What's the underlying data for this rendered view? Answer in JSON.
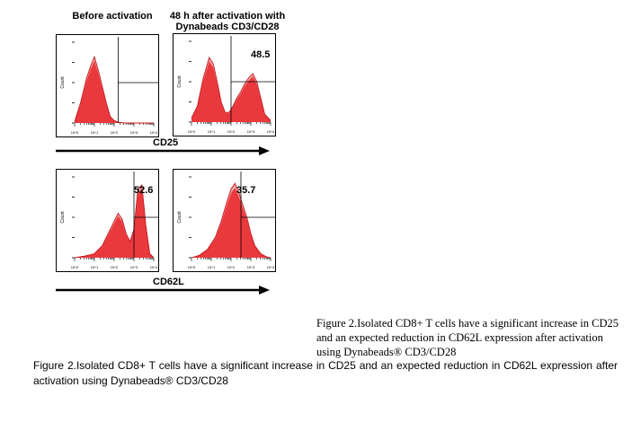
{
  "figure": {
    "column_headers": [
      "Before activation",
      "48 h after activation with\nDynabeads CD3/CD28"
    ],
    "row_markers": [
      "CD25",
      "CD62L"
    ],
    "caption_serif": "Figure 2.Isolated CD8+ T cells have a significant increase in CD25 and an expected reduction in CD62L expression after activation using  Dynabeads® CD3/CD28",
    "caption_sans": "Figure 2.Isolated CD8+ T cells have a significant increase in CD25 and an expected reduction in CD62L expression after activation using Dynabeads® CD3/CD28",
    "y_axis_label": "Count",
    "fill_color": "#e8262a",
    "fill_light": "#f4a9a8"
  },
  "chart_data": [
    {
      "type": "area",
      "marker": "CD25",
      "condition": "Before activation",
      "x_scale": "log",
      "x_ticks": [
        "10^0",
        "10^1",
        "10^2",
        "10^3",
        "10^4"
      ],
      "gate_percent": null,
      "gate_start_decade": 2.2,
      "x": [
        0.0,
        0.3,
        0.6,
        0.8,
        1.0,
        1.2,
        1.4,
        1.6,
        1.8,
        2.0,
        2.2,
        2.5,
        3.0,
        4.0
      ],
      "y": [
        0.02,
        0.25,
        0.55,
        0.7,
        0.82,
        0.65,
        0.45,
        0.25,
        0.08,
        0.03,
        0.01,
        0.0,
        0.0,
        0.0
      ]
    },
    {
      "type": "area",
      "marker": "CD25",
      "condition": "48 h after activation with Dynabeads CD3/CD28",
      "x_scale": "log",
      "x_ticks": [
        "10^0",
        "10^1",
        "10^2",
        "10^3",
        "10^4"
      ],
      "gate_percent": "48.5",
      "gate_start_decade": 2.0,
      "x": [
        0.0,
        0.3,
        0.6,
        0.9,
        1.1,
        1.3,
        1.5,
        1.7,
        1.9,
        2.1,
        2.3,
        2.5,
        2.7,
        2.9,
        3.1,
        3.3,
        3.5,
        3.7,
        4.0
      ],
      "y": [
        0.05,
        0.2,
        0.55,
        0.8,
        0.72,
        0.5,
        0.25,
        0.12,
        0.12,
        0.2,
        0.3,
        0.38,
        0.48,
        0.55,
        0.6,
        0.5,
        0.3,
        0.1,
        0.02
      ]
    },
    {
      "type": "area",
      "marker": "CD62L",
      "condition": "Before activation",
      "x_scale": "log",
      "x_ticks": [
        "10^0",
        "10^1",
        "10^2",
        "10^3",
        "10^4"
      ],
      "gate_percent": "52.6",
      "gate_start_decade": 3.0,
      "x": [
        0.0,
        0.5,
        1.0,
        1.4,
        1.8,
        2.0,
        2.2,
        2.4,
        2.6,
        2.8,
        3.0,
        3.2,
        3.4,
        3.6,
        3.8,
        4.0
      ],
      "y": [
        0.0,
        0.02,
        0.05,
        0.15,
        0.35,
        0.45,
        0.55,
        0.48,
        0.3,
        0.2,
        0.35,
        0.85,
        0.9,
        0.4,
        0.05,
        0.0
      ]
    },
    {
      "type": "area",
      "marker": "CD62L",
      "condition": "48 h after activation with Dynabeads CD3/CD28",
      "x_scale": "log",
      "x_ticks": [
        "10^0",
        "10^1",
        "10^2",
        "10^3",
        "10^4"
      ],
      "gate_percent": "35.7",
      "gate_start_decade": 2.5,
      "x": [
        0.0,
        0.4,
        0.8,
        1.2,
        1.5,
        1.8,
        2.0,
        2.2,
        2.4,
        2.6,
        2.8,
        3.0,
        3.2,
        3.5,
        3.8,
        4.0
      ],
      "y": [
        0.0,
        0.03,
        0.1,
        0.25,
        0.45,
        0.7,
        0.85,
        0.92,
        0.8,
        0.65,
        0.5,
        0.3,
        0.15,
        0.05,
        0.01,
        0.0
      ]
    }
  ]
}
